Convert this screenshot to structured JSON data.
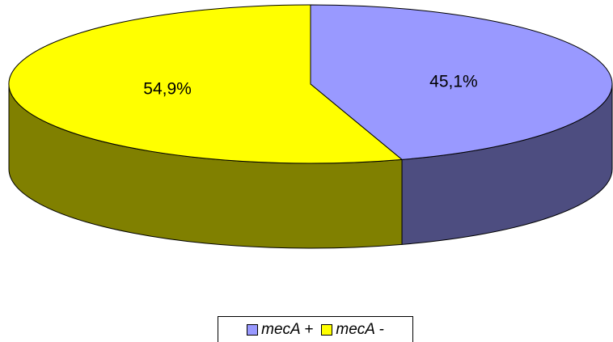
{
  "chart_data": {
    "type": "pie",
    "title": "",
    "categories": [
      "mecA +",
      "mecA -"
    ],
    "values": [
      45.1,
      54.9
    ],
    "labels": [
      "45,1%",
      "54,9%"
    ],
    "colors": [
      "#9999ff",
      "#ffff00"
    ],
    "side_colors": [
      "#4d4d80",
      "#808000"
    ],
    "legend_position": "bottom"
  },
  "legend": {
    "items": [
      {
        "name": "mecA +",
        "color": "#9999ff"
      },
      {
        "name": "mecA -",
        "color": "#ffff00"
      }
    ]
  }
}
